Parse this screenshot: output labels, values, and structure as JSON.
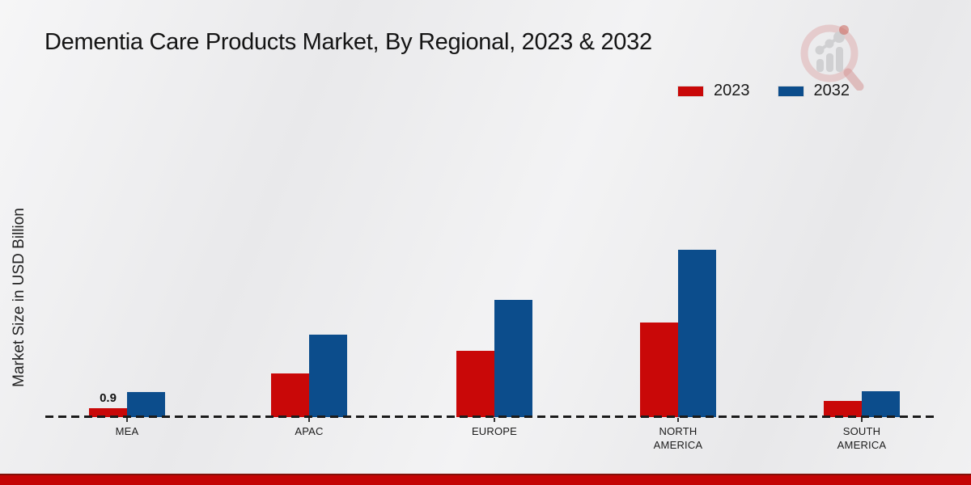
{
  "chart_data": {
    "type": "bar",
    "title": "Dementia Care Products Market, By Regional, 2023 & 2032",
    "ylabel": "Market Size in USD Billion",
    "units": "USD Billion",
    "categories": [
      "MEA",
      "APAC",
      "EUROPE",
      "NORTH AMERICA",
      "SOUTH AMERICA"
    ],
    "series": [
      {
        "name": "2023",
        "color": "#c90808",
        "values": [
          0.9,
          4.4,
          6.7,
          9.6,
          1.6
        ]
      },
      {
        "name": "2032",
        "color": "#0c4d8c",
        "values": [
          2.5,
          8.4,
          11.9,
          17.0,
          2.6
        ]
      }
    ],
    "data_labels_shown": [
      {
        "category": "MEA",
        "series": "2023",
        "text": "0.9"
      }
    ],
    "ylim": [
      0,
      18
    ],
    "grid": false,
    "legend_position": "top-right",
    "baseline_style": "dashed",
    "yticks_shown": false
  },
  "colors": {
    "bar_2023": "#c90808",
    "bar_2032": "#0c4d8c",
    "footer_band": "#c40404",
    "baseline": "#1b1b1b",
    "text": "#1a1a1a"
  },
  "icons": {
    "watermark": "magnifier-bar-chart-logo"
  }
}
